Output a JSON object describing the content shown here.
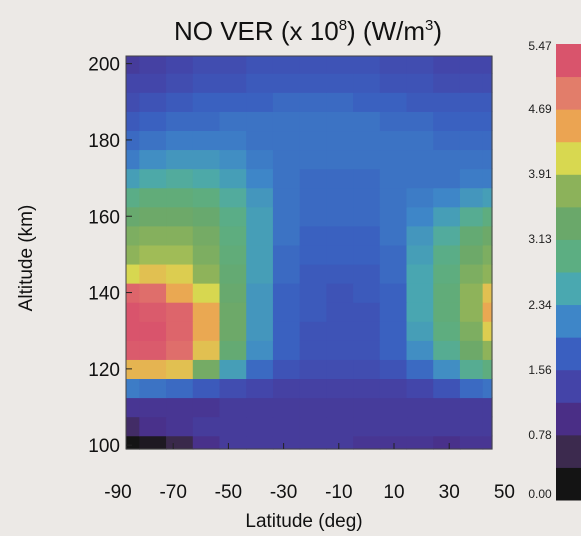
{
  "chart_data": {
    "type": "heatmap",
    "title_main": "NO VER (x 10",
    "title_sup1": "8",
    "title_mid": ") (W/m",
    "title_sup2": "3",
    "title_end": ")",
    "xlabel": "Latitude (deg)",
    "ylabel": "Altitude (km)",
    "xlim": [
      -85,
      52
    ],
    "ylim": [
      99,
      202
    ],
    "x_ticks": [
      -90,
      -70,
      -50,
      -30,
      -10,
      10,
      30,
      50
    ],
    "x_tick_labels": [
      "-90",
      "-70",
      "-50",
      "-30",
      "-10",
      "10",
      "30",
      "50"
    ],
    "y_ticks": [
      100,
      120,
      140,
      160,
      180,
      200
    ],
    "y_tick_labels": [
      "100",
      "120",
      "140",
      "160",
      "180",
      "200"
    ],
    "colorbar": {
      "min": 0.0,
      "max": 5.47,
      "tick_values": [
        0.0,
        0.78,
        1.56,
        2.34,
        3.13,
        3.91,
        4.69,
        5.47
      ],
      "tick_labels": [
        "0.00",
        "0.78",
        "1.56",
        "2.34",
        "3.13",
        "3.91",
        "4.69",
        "5.47"
      ],
      "colors": [
        "#141414",
        "#3c2a4e",
        "#4a2e86",
        "#4444a8",
        "#3a5fc0",
        "#3e86c8",
        "#4aa8b0",
        "#5cae82",
        "#6aa86a",
        "#8cb25a",
        "#d8d850",
        "#eba452",
        "#e27d6a",
        "#d9546c"
      ]
    },
    "grid_x": [
      -85,
      -75,
      -65,
      -55,
      -45,
      -35,
      -25,
      -15,
      -5,
      5,
      15,
      25,
      35,
      45,
      52
    ],
    "grid_y": [
      100,
      105,
      110,
      115,
      120,
      125,
      130,
      135,
      140,
      145,
      150,
      155,
      160,
      165,
      170,
      175,
      180,
      185,
      190,
      195,
      200
    ],
    "values": [
      [
        0.0,
        0.1,
        0.4,
        0.9,
        1.1,
        1.1,
        1.1,
        1.1,
        1.1,
        1.0,
        1.0,
        1.0,
        0.9,
        1.0,
        1.0
      ],
      [
        0.6,
        0.9,
        1.0,
        1.1,
        1.1,
        1.1,
        1.1,
        1.1,
        1.1,
        1.1,
        1.1,
        1.1,
        1.1,
        1.1,
        1.1
      ],
      [
        1.0,
        1.0,
        1.0,
        1.0,
        1.1,
        1.1,
        1.1,
        1.1,
        1.1,
        1.1,
        1.1,
        1.1,
        1.1,
        1.1,
        1.1
      ],
      [
        2.0,
        1.9,
        1.8,
        1.6,
        1.4,
        1.3,
        1.2,
        1.2,
        1.2,
        1.2,
        1.2,
        1.3,
        1.5,
        1.8,
        1.9
      ],
      [
        4.5,
        4.5,
        4.4,
        3.5,
        2.4,
        1.8,
        1.5,
        1.4,
        1.4,
        1.4,
        1.5,
        1.8,
        2.2,
        2.8,
        3.0
      ],
      [
        5.4,
        5.4,
        5.2,
        4.4,
        3.2,
        2.2,
        1.7,
        1.5,
        1.5,
        1.5,
        1.7,
        2.2,
        2.8,
        3.4,
        3.8
      ],
      [
        5.47,
        5.47,
        5.3,
        4.6,
        3.4,
        2.3,
        1.7,
        1.5,
        1.5,
        1.5,
        1.7,
        2.4,
        3.0,
        3.6,
        4.3
      ],
      [
        5.47,
        5.4,
        5.3,
        4.6,
        3.4,
        2.3,
        1.7,
        1.6,
        1.5,
        1.5,
        1.7,
        2.5,
        3.1,
        3.8,
        4.6
      ],
      [
        5.3,
        5.2,
        4.6,
        4.2,
        3.3,
        2.3,
        1.7,
        1.6,
        1.5,
        1.6,
        1.7,
        2.5,
        3.1,
        3.8,
        4.4
      ],
      [
        4.2,
        4.4,
        4.3,
        3.8,
        3.2,
        2.4,
        1.8,
        1.6,
        1.6,
        1.6,
        1.8,
        2.5,
        3.0,
        3.6,
        3.8
      ],
      [
        3.8,
        3.9,
        3.9,
        3.6,
        3.1,
        2.4,
        1.8,
        1.7,
        1.7,
        1.7,
        1.8,
        2.4,
        2.9,
        3.4,
        3.6
      ],
      [
        3.6,
        3.7,
        3.7,
        3.5,
        3.0,
        2.4,
        1.9,
        1.7,
        1.7,
        1.7,
        1.9,
        2.3,
        2.7,
        3.2,
        3.4
      ],
      [
        3.3,
        3.4,
        3.4,
        3.3,
        2.9,
        2.4,
        1.9,
        1.8,
        1.8,
        1.8,
        1.9,
        2.1,
        2.4,
        2.8,
        3.0
      ],
      [
        2.9,
        3.1,
        3.1,
        3.0,
        2.7,
        2.3,
        1.9,
        1.8,
        1.8,
        1.8,
        1.9,
        2.0,
        2.1,
        2.3,
        2.4
      ],
      [
        2.4,
        2.6,
        2.7,
        2.6,
        2.4,
        2.1,
        1.9,
        1.8,
        1.8,
        1.8,
        1.9,
        1.9,
        1.9,
        2.0,
        2.0
      ],
      [
        2.0,
        2.2,
        2.3,
        2.3,
        2.2,
        2.0,
        1.9,
        1.9,
        1.9,
        1.9,
        1.9,
        1.9,
        1.9,
        1.9,
        1.9
      ],
      [
        1.8,
        1.9,
        2.0,
        2.0,
        2.0,
        1.9,
        1.9,
        1.9,
        1.9,
        1.9,
        1.9,
        1.9,
        1.8,
        1.8,
        1.8
      ],
      [
        1.6,
        1.7,
        1.8,
        1.8,
        1.9,
        1.9,
        1.9,
        1.9,
        1.9,
        1.9,
        1.8,
        1.8,
        1.7,
        1.7,
        1.7
      ],
      [
        1.4,
        1.5,
        1.6,
        1.7,
        1.7,
        1.7,
        1.8,
        1.8,
        1.8,
        1.7,
        1.7,
        1.6,
        1.6,
        1.6,
        1.6
      ],
      [
        1.3,
        1.3,
        1.4,
        1.5,
        1.5,
        1.6,
        1.6,
        1.6,
        1.6,
        1.6,
        1.5,
        1.5,
        1.4,
        1.4,
        1.4
      ],
      [
        1.1,
        1.2,
        1.3,
        1.4,
        1.4,
        1.5,
        1.5,
        1.5,
        1.5,
        1.5,
        1.4,
        1.4,
        1.3,
        1.3,
        1.3
      ]
    ],
    "grid": false,
    "legend": "colorbar-right"
  }
}
